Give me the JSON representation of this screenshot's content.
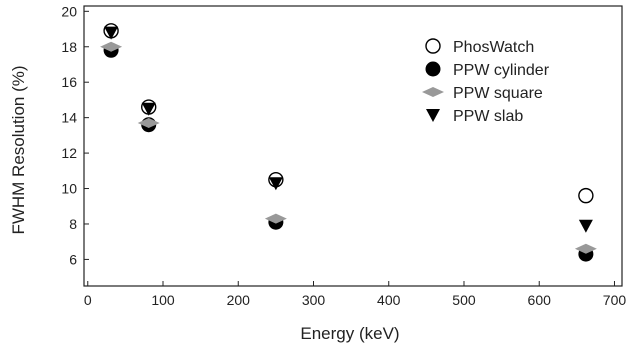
{
  "chart_data": {
    "type": "scatter",
    "xlabel": "Energy (keV)",
    "ylabel": "FWHM Resolution (%)",
    "xlim": [
      -5,
      710
    ],
    "ylim": [
      4.5,
      20.3
    ],
    "x_ticks": [
      0,
      100,
      200,
      300,
      400,
      500,
      600,
      700
    ],
    "y_ticks": [
      6,
      8,
      10,
      12,
      14,
      16,
      18,
      20
    ],
    "grid": false,
    "legend_position": "top-right",
    "series": [
      {
        "name": "PhosWatch",
        "marker": "open-circle",
        "color": "#000000",
        "x": [
          31,
          81,
          250,
          662
        ],
        "y": [
          18.9,
          14.6,
          10.5,
          9.6
        ]
      },
      {
        "name": "PPW cylinder",
        "marker": "filled-circle",
        "color": "#000000",
        "x": [
          31,
          81,
          250,
          662
        ],
        "y": [
          17.8,
          13.6,
          8.1,
          6.3
        ]
      },
      {
        "name": "PPW square",
        "marker": "diamond",
        "color": "#999999",
        "x": [
          31,
          81,
          250,
          662
        ],
        "y": [
          18.0,
          13.7,
          8.3,
          6.6
        ]
      },
      {
        "name": "PPW slab",
        "marker": "down-triangle",
        "color": "#000000",
        "x": [
          31,
          81,
          250,
          662
        ],
        "y": [
          18.8,
          14.5,
          10.3,
          7.9
        ]
      }
    ]
  }
}
